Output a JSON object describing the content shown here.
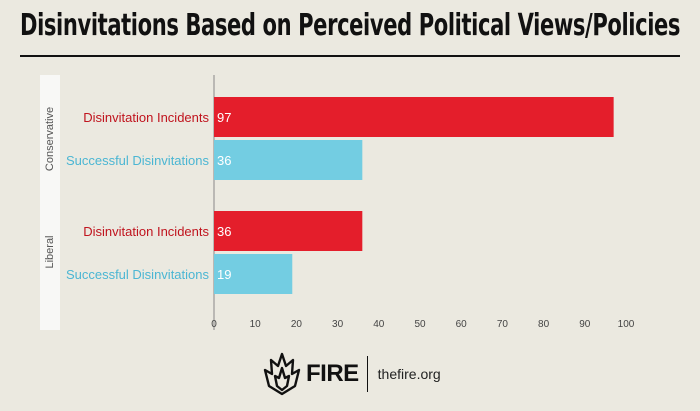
{
  "title": "Disinvitations Based on Perceived Political Views/Policies",
  "colors": {
    "incidents": "#e41e2b",
    "successful": "#73cde2",
    "incidents_label": "#c0141e",
    "successful_label": "#4bb6d3"
  },
  "chart_data": {
    "type": "bar",
    "orientation": "horizontal",
    "title": "Disinvitations Based on Perceived Political Views/Policies",
    "xlim": [
      0,
      100
    ],
    "xticks": [
      0,
      10,
      20,
      30,
      40,
      50,
      60,
      70,
      80,
      90,
      100
    ],
    "groups": [
      {
        "name": "Conservative",
        "bars": [
          {
            "label": "Disinvitation Incidents",
            "value": 97,
            "series": "incidents"
          },
          {
            "label": "Successful Disinvitations",
            "value": 36,
            "series": "successful"
          }
        ]
      },
      {
        "name": "Liberal",
        "bars": [
          {
            "label": "Disinvitation Incidents",
            "value": 36,
            "series": "incidents"
          },
          {
            "label": "Successful Disinvitations",
            "value": 19,
            "series": "successful"
          }
        ]
      }
    ]
  },
  "logo": {
    "brand": "FIRE",
    "url": "thefire.org"
  }
}
